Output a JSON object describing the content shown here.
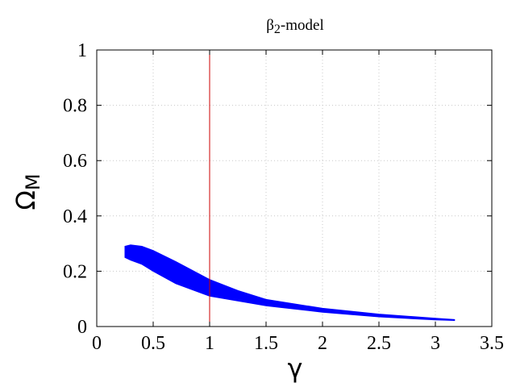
{
  "chart_data": {
    "type": "area",
    "title": "β₂-model",
    "title_main": "β",
    "title_sub": "2",
    "title_tail": "-model",
    "xlabel": "γ",
    "ylabel_main": "Ω",
    "ylabel_sub": "M",
    "xlim": [
      0,
      3.5
    ],
    "ylim": [
      0,
      1
    ],
    "xticks": [
      "0",
      "0.5",
      "1",
      "1.5",
      "2",
      "2.5",
      "3",
      "3.5"
    ],
    "yticks": [
      "0",
      "0.2",
      "0.4",
      "0.6",
      "0.8",
      "1"
    ],
    "grid": true,
    "vertical_line": {
      "x": 1,
      "color": "#cc0000"
    },
    "series": [
      {
        "color": "#0000ff",
        "upper": [
          [
            0.25,
            0.29
          ],
          [
            0.3,
            0.295
          ],
          [
            0.4,
            0.29
          ],
          [
            0.5,
            0.275
          ],
          [
            0.7,
            0.235
          ],
          [
            1.0,
            0.17
          ],
          [
            1.25,
            0.13
          ],
          [
            1.5,
            0.098
          ],
          [
            2.0,
            0.066
          ],
          [
            2.5,
            0.045
          ],
          [
            3.0,
            0.03
          ],
          [
            3.17,
            0.025
          ]
        ],
        "lower": [
          [
            3.17,
            0.022
          ],
          [
            3.0,
            0.024
          ],
          [
            2.5,
            0.035
          ],
          [
            2.0,
            0.052
          ],
          [
            1.5,
            0.075
          ],
          [
            1.0,
            0.11
          ],
          [
            0.7,
            0.155
          ],
          [
            0.5,
            0.2
          ],
          [
            0.4,
            0.225
          ],
          [
            0.3,
            0.24
          ],
          [
            0.25,
            0.25
          ]
        ]
      }
    ]
  }
}
